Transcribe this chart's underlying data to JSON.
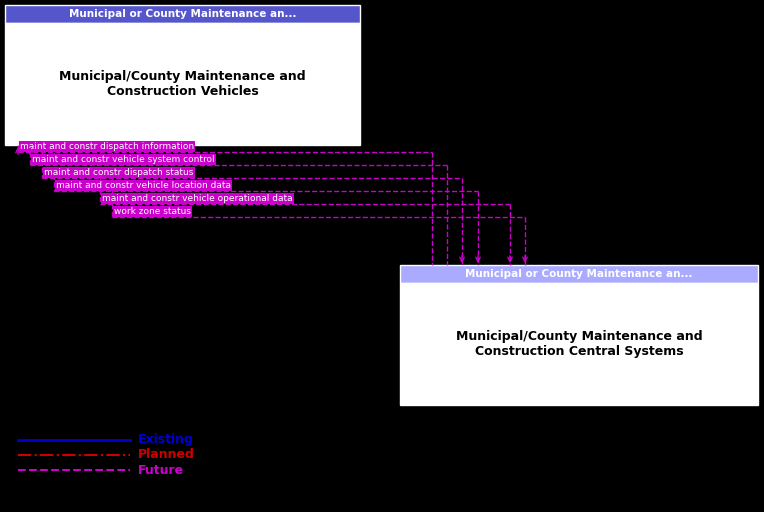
{
  "bg_color": "#000000",
  "box1_title": "Municipal or County Maintenance an...",
  "box1_label": "Municipal/County Maintenance and\nConstruction Vehicles",
  "box1_title_bg": "#5555cc",
  "box1_bg": "#ffffff",
  "box2_title": "Municipal or County Maintenance an...",
  "box2_label": "Municipal/County Maintenance and\nConstruction Central Systems",
  "box2_title_bg": "#aaaaff",
  "box2_bg": "#ffffff",
  "arrow_color": "#cc00cc",
  "label_bg": "#cc00cc",
  "label_text_color": "#ffffff",
  "legend_existing_color": "#0000cc",
  "legend_planned_color": "#cc0000",
  "legend_future_color": "#cc00cc",
  "flows": [
    {
      "label": "maint and constr dispatch information",
      "dir": "to_vehicle"
    },
    {
      "label": "maint and constr vehicle system control",
      "dir": "to_vehicle"
    },
    {
      "label": "maint and constr dispatch status",
      "dir": "to_central"
    },
    {
      "label": "maint and constr vehicle location data",
      "dir": "to_central"
    },
    {
      "label": "maint and constr vehicle operational data",
      "dir": "to_central"
    },
    {
      "label": "work zone status",
      "dir": "to_central"
    }
  ]
}
